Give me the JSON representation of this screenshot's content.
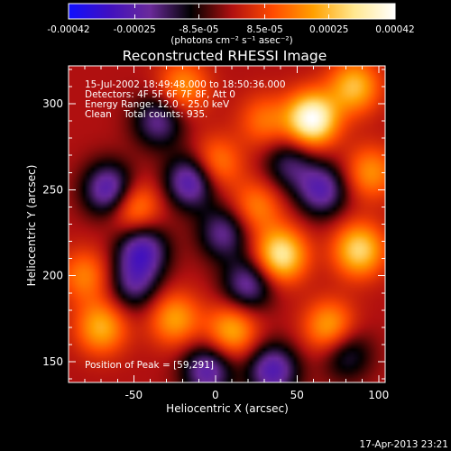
{
  "colorbar": {
    "tick_labels": [
      "-0.00042",
      "-0.00025",
      "-8.5e-05",
      "8.5e-05",
      "0.00025",
      "0.00042"
    ],
    "tick_values": [
      -0.00042,
      -0.00025,
      -8.5e-05,
      8.5e-05,
      0.00025,
      0.00042
    ],
    "range": [
      -0.00042,
      0.00042
    ],
    "units_label": "(photons cm⁻² s⁻¹ asec⁻²)",
    "gradient_stops": [
      "#1010ff",
      "#4010c0",
      "#6a2a9a",
      "#000000",
      "#b01010",
      "#ff4a00",
      "#ffa000",
      "#ffe890",
      "#ffffff"
    ]
  },
  "chart_data": {
    "type": "heatmap",
    "title": "Reconstructed RHESSI Image",
    "xlabel": "Heliocentric X (arcsec)",
    "ylabel": "Heliocentric Y (arcsec)",
    "xlim": [
      -90,
      104
    ],
    "ylim": [
      138,
      322
    ],
    "x_ticks": [
      -50,
      0,
      50,
      100
    ],
    "y_ticks": [
      150,
      200,
      250,
      300
    ],
    "x_tick_labels": [
      "-50",
      "0",
      "50",
      "100"
    ],
    "y_tick_labels": [
      "150",
      "200",
      "250",
      "300"
    ],
    "annotations": [
      "15-Jul-2002 18:49:48.000 to 18:50:36.000",
      "Detectors: 4F 5F 6F 7F 8F, Att 0",
      "Energy Range: 12.0 - 25.0 keV",
      "Clean    Total counts: 935."
    ],
    "peak_label": "Position of Peak = [59,291]",
    "peak": [
      59,
      291
    ],
    "sources": [
      {
        "x": 59,
        "y": 291,
        "amp": 1.0
      },
      {
        "x": 85,
        "y": 310,
        "amp": 0.6
      },
      {
        "x": 40,
        "y": 212,
        "amp": 0.8
      },
      {
        "x": 88,
        "y": 215,
        "amp": 0.7
      },
      {
        "x": -70,
        "y": 170,
        "amp": 0.55
      },
      {
        "x": 10,
        "y": 168,
        "amp": 0.55
      },
      {
        "x": -25,
        "y": 175,
        "amp": 0.5
      },
      {
        "x": 70,
        "y": 170,
        "amp": 0.55
      },
      {
        "x": -50,
        "y": 240,
        "amp": 0.5
      },
      {
        "x": 0,
        "y": 265,
        "amp": 0.45
      },
      {
        "x": 25,
        "y": 240,
        "amp": 0.4
      },
      {
        "x": -20,
        "y": 310,
        "amp": 0.45
      },
      {
        "x": -80,
        "y": 200,
        "amp": 0.4
      },
      {
        "x": 95,
        "y": 260,
        "amp": 0.45
      },
      {
        "x": 30,
        "y": 290,
        "amp": 0.35
      },
      {
        "x": -65,
        "y": 250,
        "amp": -0.7
      },
      {
        "x": -15,
        "y": 255,
        "amp": -0.7
      },
      {
        "x": -45,
        "y": 215,
        "amp": -0.65
      },
      {
        "x": -50,
        "y": 195,
        "amp": -0.45
      },
      {
        "x": 20,
        "y": 195,
        "amp": -0.55
      },
      {
        "x": -35,
        "y": 290,
        "amp": -0.5
      },
      {
        "x": -5,
        "y": 145,
        "amp": -0.6
      },
      {
        "x": 35,
        "y": 145,
        "amp": -0.65
      },
      {
        "x": 65,
        "y": 250,
        "amp": -0.6
      },
      {
        "x": 80,
        "y": 155,
        "amp": -0.4
      },
      {
        "x": 5,
        "y": 225,
        "amp": -0.5
      },
      {
        "x": 45,
        "y": 265,
        "amp": -0.4
      }
    ]
  },
  "footer": {
    "timestamp": "17-Apr-2013 23:21"
  }
}
